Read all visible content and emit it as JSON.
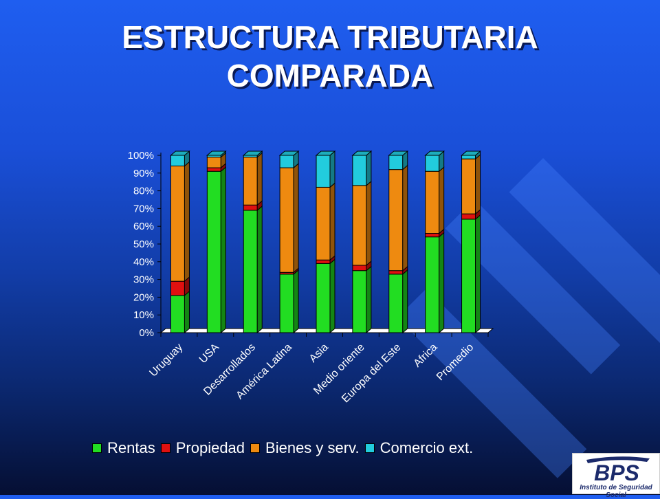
{
  "slide": {
    "title_line1": "ESTRUCTURA TRIBUTARIA",
    "title_line2": "COMPARADA"
  },
  "logo": {
    "brand": "BPS",
    "subtitle": "Instituto de Seguridad Social"
  },
  "colors": {
    "rentas": "#22dd22",
    "propiedad": "#e01010",
    "bienes": "#ee8a10",
    "comercio": "#22ccdd"
  },
  "chart_data": {
    "type": "bar",
    "stacked": true,
    "percent_axis": true,
    "title": "",
    "xlabel": "",
    "ylabel": "",
    "ylim": [
      0,
      100
    ],
    "yticks": [
      "0%",
      "10%",
      "20%",
      "30%",
      "40%",
      "50%",
      "60%",
      "70%",
      "80%",
      "90%",
      "100%"
    ],
    "categories": [
      "Uruguay",
      "USA",
      "Desarrollados",
      "América Latina",
      "Asia",
      "Medio oriente",
      "Europa del Este",
      "Africa",
      "Promedio"
    ],
    "series": [
      {
        "name": "Rentas",
        "values": [
          21,
          91,
          69,
          33,
          39,
          35,
          33,
          54,
          64
        ]
      },
      {
        "name": "Propiedad",
        "values": [
          8,
          2,
          3,
          1,
          2,
          3,
          2,
          2,
          3
        ]
      },
      {
        "name": "Bienes y serv.",
        "values": [
          65,
          6,
          27,
          59,
          41,
          45,
          57,
          35,
          31
        ]
      },
      {
        "name": "Comercio ext.",
        "values": [
          6,
          1,
          1,
          7,
          18,
          17,
          8,
          9,
          2
        ]
      }
    ],
    "legend_position": "bottom",
    "grid": false
  }
}
